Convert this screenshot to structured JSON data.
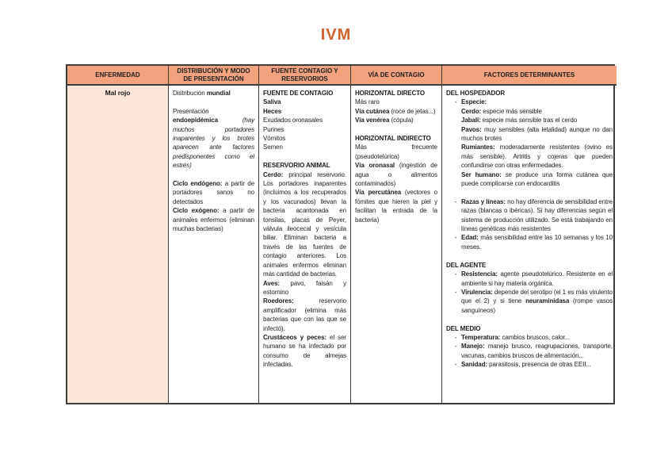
{
  "page": {
    "title": "IVM"
  },
  "colors": {
    "header_bg": "#F2A37E",
    "row_bg": "#FBE6D8",
    "title": "#D2622B",
    "border": "#3C3C3C"
  },
  "table": {
    "headers": [
      "ENFERMEDAD",
      "DISTRIBUCIÓN Y MODO DE PRESENTACIÓN",
      "FUENTE CONTAGIO Y RESERVORIOS",
      "VÍA DE CONTAGIO",
      "FACTORES DETERMINANTES"
    ],
    "row": {
      "enfermedad": "Mal rojo",
      "distribucion": [
        [
          {
            "t": "Distribución "
          },
          {
            "t": "mundial",
            "b": true
          }
        ],
        [],
        [
          {
            "t": "Presentación "
          },
          {
            "t": "endoepidémica ",
            "b": true
          },
          {
            "t": "(hay muchos portadores inaparentes y los brotes aparecen ante factores predisponentes como el estrés)",
            "i": true
          }
        ],
        [],
        [
          {
            "t": "Ciclo endógeno:",
            "b": true
          },
          {
            "t": " a partir de portadores sanos no detectados"
          }
        ],
        [
          {
            "t": "Ciclo exógeno:",
            "b": true
          },
          {
            "t": " a partir de animales enfermos (eliminan muchas bacterias)"
          }
        ]
      ],
      "fuente": [
        [
          {
            "t": "FUENTE DE CONTAGIO",
            "b": true
          }
        ],
        [
          {
            "t": "Saliva",
            "b": true
          }
        ],
        [
          {
            "t": "Heces",
            "b": true
          }
        ],
        [
          {
            "t": "Exudados oronasales"
          }
        ],
        [
          {
            "t": "Purines"
          }
        ],
        [
          {
            "t": "Vómitos"
          }
        ],
        [
          {
            "t": "Semen"
          }
        ],
        [],
        [
          {
            "t": "RESERVORIO ANIMAL",
            "b": true
          }
        ],
        [
          {
            "t": "Cerdo:",
            "b": true
          },
          {
            "t": " principal reservorio. Los portadores inaparentes (incluimos a los recuperados y los vacunados) llevan la bacteria acantonada en tonsilas, placas de Peyer, válvula ileocecal y vesícula biliar. Eliminan bacteria a través de las fuentes de contagio anteriores. Los animales enfermos eliminan más cantidad de bacterias."
          }
        ],
        [
          {
            "t": "Aves:",
            "b": true
          },
          {
            "t": " pavo, faisán y estornino"
          }
        ],
        [
          {
            "t": "Roedores:",
            "b": true
          },
          {
            "t": " reservorio amplificador (elimina más bacterias que con las que se infectó)."
          }
        ],
        [
          {
            "t": "Crustáceos y peces:",
            "b": true
          },
          {
            "t": " el ser humano se ha infectado por consumo de almejas infectadas."
          }
        ]
      ],
      "via": [
        [
          {
            "t": "HORIZONTAL DIRECTO",
            "b": true
          }
        ],
        [
          {
            "t": "Más raro"
          }
        ],
        [
          {
            "t": "Vía cutánea",
            "b": true
          },
          {
            "t": " (roce de jetas...)"
          }
        ],
        [
          {
            "t": "Vía venérea",
            "b": true
          },
          {
            "t": " (cópula)"
          }
        ],
        [],
        [
          {
            "t": "HORIZONTAL INDIRECTO",
            "b": true
          }
        ],
        [
          {
            "t": "Más frecuente (pseudotelúrica)"
          }
        ],
        [
          {
            "t": "Vía oronasal",
            "b": true
          },
          {
            "t": " (ingestión de agua o alimentos contaminados)"
          }
        ],
        [
          {
            "t": "Vía percutánea",
            "b": true
          },
          {
            "t": " (vectores o fómites que hieren la piel y facilitan la entrada de la bacteria)"
          }
        ]
      ],
      "factores": {
        "bullet": "-",
        "sections": [
          {
            "heading": "DEL HOSPEDADOR",
            "items": [
              {
                "paras": [
                  [
                    {
                      "t": "Especie:",
                      "b": true
                    }
                  ],
                  [
                    {
                      "t": "Cerdo:",
                      "b": true
                    },
                    {
                      "t": " especie más sensible"
                    }
                  ],
                  [
                    {
                      "t": "Jabalí:",
                      "b": true
                    },
                    {
                      "t": " especie más sensible tras el cerdo"
                    }
                  ],
                  [
                    {
                      "t": "Pavos:",
                      "b": true
                    },
                    {
                      "t": " muy sensibles (alta letalidad) aunque no dan muchos brotes"
                    }
                  ],
                  [
                    {
                      "t": "Rumiantes:",
                      "b": true
                    },
                    {
                      "t": " moderadamente resistentes (ovino es más sensible). Artritis y cojeras que pueden confundirse con otras enfermedades."
                    }
                  ],
                  [
                    {
                      "t": "Ser humano:",
                      "b": true
                    },
                    {
                      "t": " se produce una forma cutánea que puede complicarse con endocarditis"
                    }
                  ]
                ]
              },
              {
                "gap": true,
                "paras": [
                  [
                    {
                      "t": "Razas y líneas:",
                      "b": true
                    },
                    {
                      "t": " no hay diferencia de sensibilidad entre razas (blancas o ibéricas). Sí hay diferencias según el sistema de producción utilizado. Se está trabajando en líneas genéticas más resistentes"
                    }
                  ]
                ]
              },
              {
                "paras": [
                  [
                    {
                      "t": "Edad:",
                      "b": true
                    },
                    {
                      "t": " más sensibilidad entre las 10 semanas y los 10 meses."
                    }
                  ]
                ]
              }
            ]
          },
          {
            "heading": "DEL AGENTE",
            "items": [
              {
                "paras": [
                  [
                    {
                      "t": "Resistencia:",
                      "b": true
                    },
                    {
                      "t": " agente pseudotelúrico. Resistente en el ambiente si hay materia orgánica."
                    }
                  ]
                ]
              },
              {
                "paras": [
                  [
                    {
                      "t": "Virulencia:",
                      "b": true
                    },
                    {
                      "t": " depende del serotipo (el 1 es más virulento que el 2) y si tiene "
                    },
                    {
                      "t": "neuraminidasa",
                      "b": true
                    },
                    {
                      "t": " (rompe vasos sanguíneos)"
                    }
                  ]
                ]
              }
            ]
          },
          {
            "heading": "DEL MEDIO",
            "items": [
              {
                "paras": [
                  [
                    {
                      "t": "Temperatura:",
                      "b": true
                    },
                    {
                      "t": " cambios bruscos, calor..."
                    }
                  ]
                ]
              },
              {
                "paras": [
                  [
                    {
                      "t": "Manejo:",
                      "b": true
                    },
                    {
                      "t": " manejo brusco, reagrupaciones, transporte, vacunas, cambios bruscos de alimentación..."
                    }
                  ]
                ]
              },
              {
                "paras": [
                  [
                    {
                      "t": "Sanidad:",
                      "b": true
                    },
                    {
                      "t": " parasitosis, presencia de otras EEII..."
                    }
                  ]
                ]
              }
            ]
          }
        ]
      }
    }
  }
}
